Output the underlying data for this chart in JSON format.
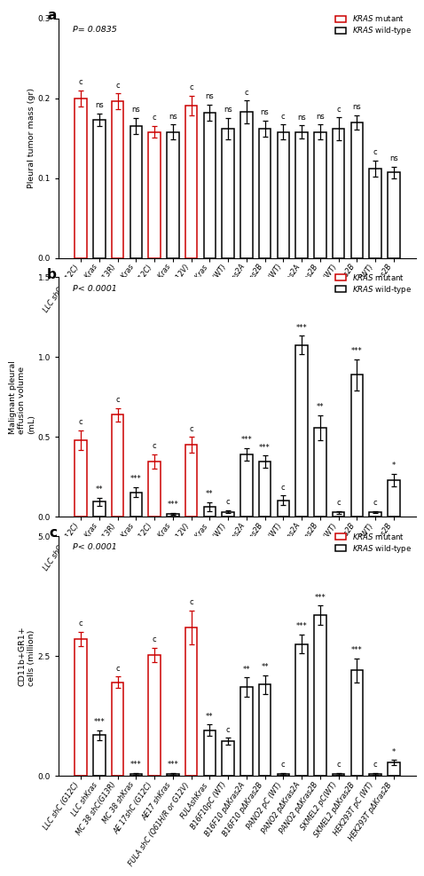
{
  "categories": [
    "LLC shC (G12C)",
    "LLC shKras",
    "MC 38 shC(G13R)",
    "MC 38 shKras",
    "AE 17shC (G12C)",
    "AE17 shKras",
    "FULA shC (Q61H/R or G12V)",
    "FULAshKras",
    "B16F10pC (WT)",
    "B16F10 pΔKras2A",
    "B16F10 pΔKras2B",
    "PANO2 pC (WT)",
    "PANO2 pΔKras2A",
    "PANO2 pΔKras2B",
    "SKMEL2 pC(WT)",
    "SKMEL2 pΔKras2B",
    "HEK293T pC (WT)",
    "HEK293T pΔKras2B"
  ],
  "red_indices": [
    0,
    2,
    4,
    6
  ],
  "panel_a": {
    "title": "P= 0.0835",
    "ylabel": "Pleural tumor mass (gr)",
    "ylim": [
      0,
      0.3
    ],
    "yticks": [
      0.0,
      0.1,
      0.2,
      0.3
    ],
    "values": [
      0.2,
      0.173,
      0.196,
      0.165,
      0.158,
      0.158,
      0.191,
      0.182,
      0.162,
      0.183,
      0.162,
      0.158,
      0.158,
      0.158,
      0.162,
      0.17,
      0.112,
      0.107
    ],
    "errors": [
      0.01,
      0.008,
      0.01,
      0.01,
      0.007,
      0.009,
      0.012,
      0.01,
      0.013,
      0.014,
      0.01,
      0.009,
      0.008,
      0.009,
      0.014,
      0.009,
      0.01,
      0.007
    ],
    "annotations": [
      "c",
      "ns",
      "c",
      "ns",
      "c",
      "ns",
      "c",
      "ns",
      "ns",
      "c",
      "ns",
      "c",
      "ns",
      "ns",
      "c",
      "ns",
      "c",
      "ns"
    ]
  },
  "panel_b": {
    "title": "P< 0.0001",
    "ylabel": "Malignant pleural\neffusion volume\n(mL)",
    "ylim": [
      0,
      1.5
    ],
    "yticks": [
      0.0,
      0.5,
      1.0,
      1.5
    ],
    "values": [
      0.48,
      0.095,
      0.64,
      0.155,
      0.345,
      0.018,
      0.45,
      0.065,
      0.033,
      0.39,
      0.345,
      0.105,
      1.075,
      0.56,
      0.028,
      0.89,
      0.03,
      0.23
    ],
    "errors": [
      0.06,
      0.025,
      0.042,
      0.03,
      0.045,
      0.006,
      0.05,
      0.028,
      0.008,
      0.04,
      0.038,
      0.028,
      0.058,
      0.078,
      0.008,
      0.098,
      0.008,
      0.038
    ],
    "annotations": [
      "c",
      "**",
      "c",
      "***",
      "c",
      "***",
      "c",
      "**",
      "c",
      "***",
      "***",
      "c",
      "***",
      "**",
      "c",
      "***",
      "c",
      "*"
    ]
  },
  "panel_c": {
    "title": "P< 0.0001",
    "ylabel": "CD11b+GR1+\ncells (million)",
    "ylim": [
      0,
      5.0
    ],
    "yticks": [
      0.0,
      2.5,
      5.0
    ],
    "values": [
      2.85,
      0.85,
      1.95,
      0.04,
      2.52,
      0.04,
      3.1,
      0.95,
      0.72,
      1.85,
      1.9,
      0.04,
      2.75,
      3.35,
      0.04,
      2.2,
      0.04,
      0.28
    ],
    "errors": [
      0.15,
      0.1,
      0.12,
      0.02,
      0.15,
      0.02,
      0.35,
      0.12,
      0.07,
      0.2,
      0.2,
      0.02,
      0.2,
      0.2,
      0.02,
      0.25,
      0.02,
      0.05
    ],
    "annotations": [
      "c",
      "***",
      "c",
      "***",
      "c",
      "***",
      "c",
      "**",
      "c",
      "**",
      "**",
      "c",
      "***",
      "***",
      "c",
      "***",
      "c",
      "*"
    ]
  },
  "red_color": "#CC0000",
  "black_color": "#000000",
  "white_fill": "#FFFFFF",
  "bar_width": 0.65,
  "panel_labels": [
    "a",
    "b",
    "c"
  ],
  "legend_labels": [
    "KRAS mutant",
    "KRAS wild-type"
  ]
}
